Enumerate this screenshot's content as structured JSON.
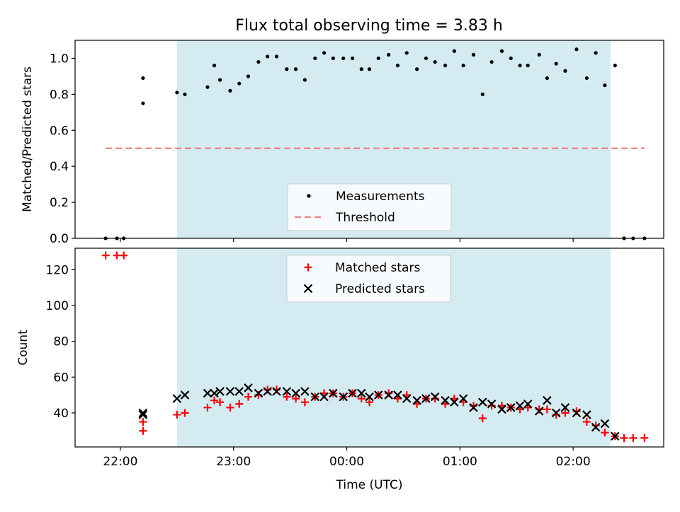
{
  "figure": {
    "title": "Flux total observing time = 3.83 h",
    "background": "#ffffff",
    "shade_color": "#add8e6"
  },
  "chart_data": [
    {
      "type": "scatter",
      "ylabel": "Matched/Predicted stars",
      "xlim": [
        21.6,
        26.8
      ],
      "ylim": [
        0.0,
        1.1
      ],
      "yticks": [
        0.0,
        0.2,
        0.4,
        0.6,
        0.8,
        1.0
      ],
      "yticklabels": [
        "0.0",
        "0.2",
        "0.4",
        "0.6",
        "0.8",
        "1.0"
      ],
      "shaded_interval": [
        22.5,
        26.33
      ],
      "legend": {
        "position": "lower-center",
        "entries": [
          {
            "label": "Measurements",
            "marker": "dot",
            "color": "#000000"
          },
          {
            "label": "Threshold",
            "marker": "dashed-line",
            "color": "#f08080"
          }
        ]
      },
      "threshold": {
        "value": 0.5,
        "x": [
          21.87,
          26.63
        ],
        "color": "#f08080"
      },
      "series": [
        {
          "name": "Measurements",
          "color": "#000000",
          "points": [
            [
              21.87,
              0.0
            ],
            [
              21.97,
              0.0
            ],
            [
              22.03,
              0.0
            ],
            [
              22.2,
              0.75
            ],
            [
              22.2,
              0.89
            ],
            [
              22.5,
              0.81
            ],
            [
              22.57,
              0.8
            ],
            [
              22.77,
              0.84
            ],
            [
              22.83,
              0.96
            ],
            [
              22.88,
              0.88
            ],
            [
              22.97,
              0.82
            ],
            [
              23.05,
              0.86
            ],
            [
              23.13,
              0.9
            ],
            [
              23.22,
              0.98
            ],
            [
              23.3,
              1.01
            ],
            [
              23.38,
              1.01
            ],
            [
              23.47,
              0.94
            ],
            [
              23.55,
              0.94
            ],
            [
              23.63,
              0.88
            ],
            [
              23.72,
              1.0
            ],
            [
              23.8,
              1.03
            ],
            [
              23.88,
              1.0
            ],
            [
              23.97,
              1.0
            ],
            [
              24.05,
              1.0
            ],
            [
              24.13,
              0.94
            ],
            [
              24.2,
              0.94
            ],
            [
              24.28,
              1.0
            ],
            [
              24.37,
              1.02
            ],
            [
              24.45,
              0.96
            ],
            [
              24.53,
              1.03
            ],
            [
              24.62,
              0.94
            ],
            [
              24.7,
              1.0
            ],
            [
              24.78,
              0.98
            ],
            [
              24.87,
              0.96
            ],
            [
              24.95,
              1.04
            ],
            [
              25.03,
              0.96
            ],
            [
              25.12,
              1.02
            ],
            [
              25.2,
              0.8
            ],
            [
              25.28,
              0.98
            ],
            [
              25.37,
              1.04
            ],
            [
              25.45,
              1.0
            ],
            [
              25.53,
              0.96
            ],
            [
              25.6,
              0.96
            ],
            [
              25.7,
              1.02
            ],
            [
              25.77,
              0.89
            ],
            [
              25.85,
              0.97
            ],
            [
              25.93,
              0.93
            ],
            [
              26.03,
              1.05
            ],
            [
              26.12,
              0.89
            ],
            [
              26.2,
              1.03
            ],
            [
              26.28,
              0.85
            ],
            [
              26.37,
              0.96
            ],
            [
              26.45,
              0.0
            ],
            [
              26.53,
              0.0
            ],
            [
              26.63,
              0.0
            ]
          ]
        }
      ]
    },
    {
      "type": "scatter",
      "xlabel": "Time (UTC)",
      "ylabel": "Count",
      "xlim": [
        21.6,
        26.8
      ],
      "ylim": [
        21,
        132
      ],
      "yticks": [
        40,
        60,
        80,
        100,
        120
      ],
      "yticklabels": [
        "40",
        "60",
        "80",
        "100",
        "120"
      ],
      "xticks": [
        22.0,
        23.0,
        24.0,
        25.0,
        26.0
      ],
      "xticklabels": [
        "22:00",
        "23:00",
        "00:00",
        "01:00",
        "02:00"
      ],
      "shaded_interval": [
        22.5,
        26.33
      ],
      "legend": {
        "position": "upper-center",
        "entries": [
          {
            "label": "Matched stars",
            "marker": "plus",
            "color": "#ff0000"
          },
          {
            "label": "Predicted stars",
            "marker": "x",
            "color": "#000000"
          }
        ]
      },
      "series": [
        {
          "name": "Matched stars",
          "marker": "plus",
          "color": "#ff0000",
          "points": [
            [
              21.87,
              128
            ],
            [
              21.97,
              128
            ],
            [
              22.03,
              128
            ],
            [
              22.2,
              30
            ],
            [
              22.2,
              35
            ],
            [
              22.5,
              39
            ],
            [
              22.57,
              40
            ],
            [
              22.77,
              43
            ],
            [
              22.83,
              47
            ],
            [
              22.88,
              46
            ],
            [
              22.97,
              43
            ],
            [
              23.05,
              45
            ],
            [
              23.13,
              49
            ],
            [
              23.22,
              50
            ],
            [
              23.3,
              53
            ],
            [
              23.38,
              53
            ],
            [
              23.47,
              49
            ],
            [
              23.55,
              48
            ],
            [
              23.63,
              46
            ],
            [
              23.72,
              49
            ],
            [
              23.8,
              51
            ],
            [
              23.88,
              51
            ],
            [
              23.97,
              49
            ],
            [
              24.05,
              51
            ],
            [
              24.13,
              48
            ],
            [
              24.2,
              46
            ],
            [
              24.28,
              50
            ],
            [
              24.37,
              51
            ],
            [
              24.45,
              48
            ],
            [
              24.53,
              50
            ],
            [
              24.62,
              45
            ],
            [
              24.7,
              48
            ],
            [
              24.78,
              48
            ],
            [
              24.87,
              45
            ],
            [
              24.95,
              48
            ],
            [
              25.03,
              46
            ],
            [
              25.12,
              44
            ],
            [
              25.2,
              37
            ],
            [
              25.28,
              44
            ],
            [
              25.37,
              44
            ],
            [
              25.45,
              43
            ],
            [
              25.53,
              42
            ],
            [
              25.6,
              43
            ],
            [
              25.7,
              42
            ],
            [
              25.77,
              42
            ],
            [
              25.85,
              39
            ],
            [
              25.93,
              40
            ],
            [
              26.03,
              41
            ],
            [
              26.12,
              35
            ],
            [
              26.2,
              33
            ],
            [
              26.28,
              29
            ],
            [
              26.37,
              27
            ],
            [
              26.45,
              26
            ],
            [
              26.53,
              26
            ],
            [
              26.63,
              26
            ]
          ]
        },
        {
          "name": "Predicted stars",
          "marker": "x",
          "color": "#000000",
          "points": [
            [
              22.2,
              39
            ],
            [
              22.2,
              40
            ],
            [
              22.5,
              48
            ],
            [
              22.57,
              50
            ],
            [
              22.77,
              51
            ],
            [
              22.83,
              51
            ],
            [
              22.88,
              52
            ],
            [
              22.97,
              52
            ],
            [
              23.05,
              52
            ],
            [
              23.13,
              54
            ],
            [
              23.22,
              51
            ],
            [
              23.3,
              52
            ],
            [
              23.38,
              52
            ],
            [
              23.47,
              52
            ],
            [
              23.55,
              51
            ],
            [
              23.63,
              52
            ],
            [
              23.72,
              49
            ],
            [
              23.8,
              49
            ],
            [
              23.88,
              51
            ],
            [
              23.97,
              49
            ],
            [
              24.05,
              51
            ],
            [
              24.13,
              51
            ],
            [
              24.2,
              49
            ],
            [
              24.28,
              50
            ],
            [
              24.37,
              50
            ],
            [
              24.45,
              50
            ],
            [
              24.53,
              48
            ],
            [
              24.62,
              47
            ],
            [
              24.7,
              48
            ],
            [
              24.78,
              49
            ],
            [
              24.87,
              47
            ],
            [
              24.95,
              46
            ],
            [
              25.03,
              48
            ],
            [
              25.12,
              43
            ],
            [
              25.2,
              46
            ],
            [
              25.28,
              45
            ],
            [
              25.37,
              42
            ],
            [
              25.45,
              43
            ],
            [
              25.53,
              44
            ],
            [
              25.6,
              45
            ],
            [
              25.7,
              41
            ],
            [
              25.77,
              47
            ],
            [
              25.85,
              40
            ],
            [
              25.93,
              43
            ],
            [
              26.03,
              40
            ],
            [
              26.12,
              39
            ],
            [
              26.2,
              32
            ],
            [
              26.28,
              34
            ],
            [
              26.37,
              27
            ]
          ]
        }
      ]
    }
  ]
}
